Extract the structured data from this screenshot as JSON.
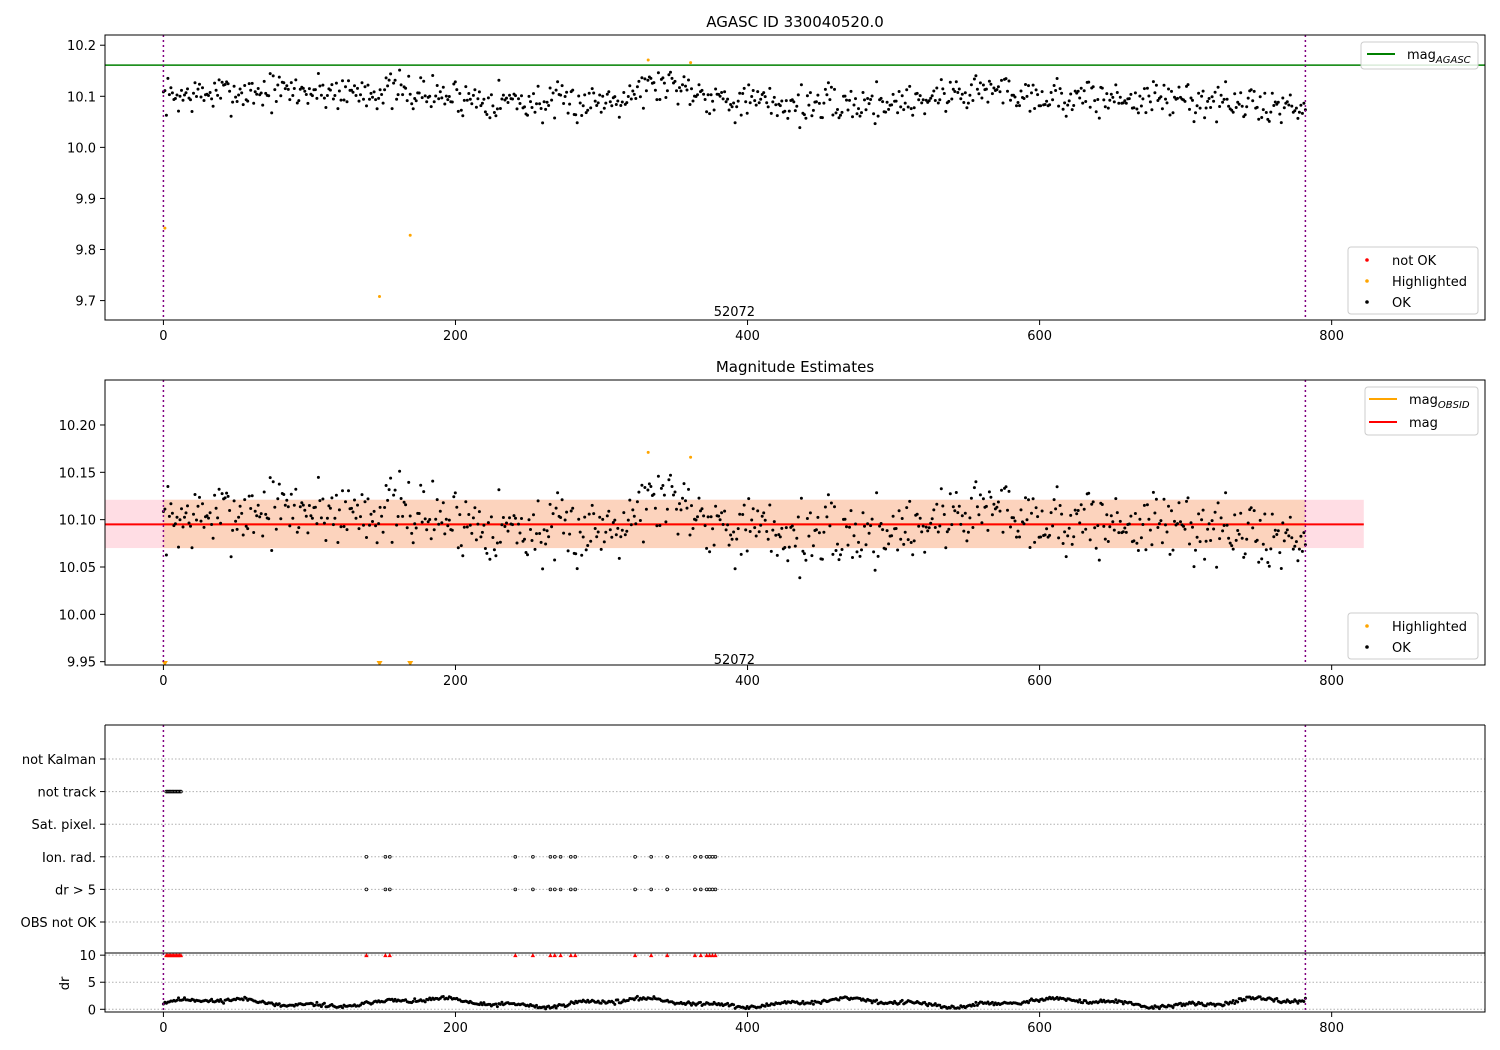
{
  "chart_data": [
    {
      "id": "top",
      "type": "scatter",
      "title": "AGASC ID 330040520.0",
      "xlim": [
        -40,
        905
      ],
      "ylim": [
        9.662,
        10.22
      ],
      "xticks": [
        0,
        200,
        400,
        600,
        800
      ],
      "yticks": [
        9.7,
        9.8,
        9.9,
        10.0,
        10.1,
        10.2
      ],
      "ytick_labels": [
        "9.7",
        "9.8",
        "9.9",
        "10.0",
        "10.1",
        "10.2"
      ],
      "vlines": [
        0,
        782
      ],
      "obsid_label": {
        "text": "52072",
        "x": 391,
        "y": 9.68
      },
      "reference_line": {
        "name": "mag",
        "subscript": "AGASC",
        "value": 10.161,
        "color": "#008000"
      },
      "series": [
        {
          "name": "not OK",
          "color": "#ff0000",
          "x": [],
          "y": []
        },
        {
          "name": "Highlighted",
          "color": "#ffa500",
          "x": [
            1,
            148,
            169,
            332,
            361
          ],
          "y": [
            9.842,
            9.708,
            9.828,
            10.171,
            10.166
          ]
        },
        {
          "name": "OK",
          "color": "#000000",
          "generated": {
            "n": 760,
            "x0": 0,
            "x1": 782,
            "center": 10.095,
            "seed": 7
          }
        }
      ],
      "legend": [
        {
          "entries": [
            "mag_AGASC"
          ],
          "position": "top-right"
        },
        {
          "entries": [
            "not OK",
            "Highlighted",
            "OK"
          ],
          "position": "bottom-right"
        }
      ]
    },
    {
      "id": "mid",
      "type": "scatter",
      "title": "Magnitude Estimates",
      "xlim": [
        -40,
        905
      ],
      "ylim": [
        9.9465,
        10.2475
      ],
      "xticks": [
        0,
        200,
        400,
        600,
        800
      ],
      "yticks": [
        9.95,
        10.0,
        10.05,
        10.1,
        10.15,
        10.2
      ],
      "ytick_labels": [
        "9.95",
        "10.00",
        "10.05",
        "10.10",
        "10.15",
        "10.20"
      ],
      "vlines": [
        0,
        782
      ],
      "obsid_label": {
        "text": "52072",
        "x": 391,
        "y": 9.953
      },
      "mag_band": {
        "name": "mag",
        "value": 10.095,
        "lo": 10.07,
        "hi": 10.121,
        "x0": -40,
        "x1": 822,
        "color": "#ff0000",
        "fill": "#ffdde4"
      },
      "obsid_band": {
        "name": "mag",
        "subscript": "OBSID",
        "value": 10.095,
        "lo": 10.07,
        "hi": 10.121,
        "x0": 0,
        "x1": 782,
        "color": "#ffa500",
        "fill": "#fcd3bd"
      },
      "off_scale_markers": {
        "color": "#ffa500",
        "x": [
          1,
          148,
          169
        ],
        "y": 9.9475
      },
      "series": [
        {
          "name": "Highlighted",
          "color": "#ffa500",
          "x": [
            332,
            361
          ],
          "y": [
            10.171,
            10.166
          ]
        },
        {
          "name": "OK",
          "color": "#000000",
          "generated": {
            "n": 760,
            "x0": 0,
            "x1": 782,
            "center": 10.095,
            "seed": 7
          }
        }
      ],
      "legend": [
        {
          "entries": [
            "mag_OBSID",
            "mag"
          ],
          "position": "top-right"
        },
        {
          "entries": [
            "Highlighted",
            "OK"
          ],
          "position": "bottom-right"
        }
      ]
    },
    {
      "id": "flags",
      "type": "scatter",
      "xlim": [
        -40,
        905
      ],
      "categories": [
        "not Kalman",
        "not track",
        "Sat. pixel.",
        "Ion. rad.",
        "dr > 5",
        "OBS not OK"
      ],
      "vlines": [
        0,
        782
      ],
      "series": [
        {
          "name": "not Kalman",
          "x": []
        },
        {
          "name": "not track",
          "x": [
            2,
            3,
            4,
            5,
            6,
            7,
            8,
            9,
            10,
            11,
            12
          ]
        },
        {
          "name": "Sat. pixel.",
          "x": []
        },
        {
          "name": "Ion. rad.",
          "x": [
            139,
            152,
            155,
            241,
            253,
            265,
            268,
            272,
            279,
            282,
            323,
            334,
            345,
            364,
            368,
            372,
            374,
            376,
            378
          ]
        },
        {
          "name": "dr > 5",
          "x": [
            139,
            152,
            155,
            241,
            253,
            265,
            268,
            272,
            279,
            282,
            323,
            334,
            345,
            364,
            368,
            372,
            374,
            376,
            378
          ]
        },
        {
          "name": "OBS not OK",
          "x": []
        }
      ]
    },
    {
      "id": "dr",
      "type": "scatter",
      "ylabel": "dr",
      "xlim": [
        -40,
        905
      ],
      "ylim": [
        -0.5,
        10.4
      ],
      "xticks": [
        0,
        200,
        400,
        600,
        800
      ],
      "yticks": [
        0,
        5,
        10
      ],
      "ytick_labels": [
        "0",
        "5",
        "10"
      ],
      "vlines": [
        0,
        782
      ],
      "clipped": {
        "color": "#ff0000",
        "y": 10,
        "x": [
          2,
          3,
          4,
          5,
          6,
          7,
          8,
          9,
          10,
          11,
          12,
          139,
          152,
          155,
          241,
          253,
          265,
          268,
          272,
          279,
          282,
          323,
          334,
          345,
          364,
          368,
          372,
          374,
          376,
          378
        ]
      },
      "series": [
        {
          "name": "dr",
          "color": "#000000",
          "generated": {
            "n": 760,
            "x0": 0,
            "x1": 782,
            "center": 1.3,
            "seed": 11
          }
        }
      ]
    }
  ]
}
